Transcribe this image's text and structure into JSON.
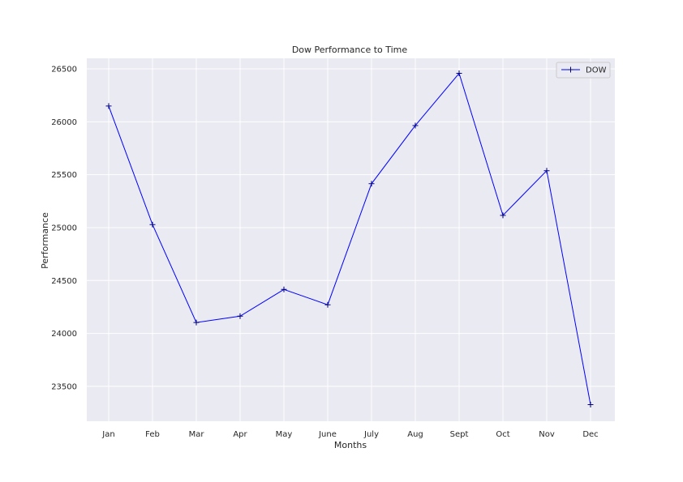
{
  "chart_data": {
    "type": "line",
    "title": "Dow Performance to Time",
    "xlabel": "Months",
    "ylabel": "Performance",
    "categories": [
      "Jan",
      "Feb",
      "Mar",
      "Apr",
      "May",
      "June",
      "July",
      "Aug",
      "Sept",
      "Oct",
      "Nov",
      "Dec"
    ],
    "series": [
      {
        "name": "DOW",
        "values": [
          26149,
          25029,
          24103,
          24163,
          24416,
          24271,
          25415,
          25965,
          26458,
          25116,
          25538,
          23327
        ],
        "color": "#0000ff"
      }
    ],
    "ylim": [
      23170,
      26600
    ],
    "yticks": [
      23500,
      24000,
      24500,
      25000,
      25500,
      26000,
      26500
    ],
    "ytick_labels": [
      "23500",
      "24000",
      "24500",
      "25000",
      "25500",
      "26000",
      "26500"
    ],
    "grid": true,
    "legend_position": "top-right",
    "background_color": "#eaeaf2",
    "grid_color": "#ffffff"
  }
}
